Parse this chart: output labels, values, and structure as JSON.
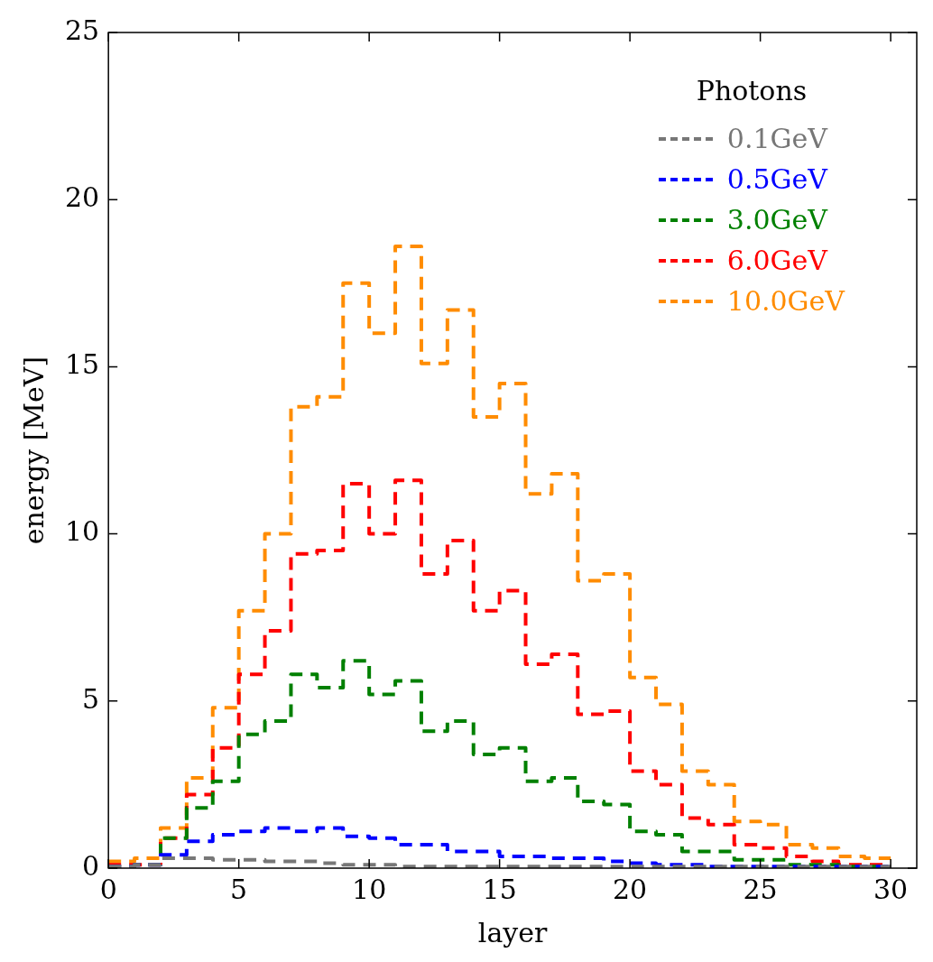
{
  "chart_data": {
    "type": "histogram",
    "xlabel": "layer",
    "ylabel": "energy [MeV]",
    "legend_title": "Photons",
    "legend": "top right",
    "line_style": "dashed",
    "grid": false,
    "bins": [
      0,
      1,
      2,
      3,
      4,
      5,
      6,
      7,
      8,
      9,
      10,
      11,
      12,
      13,
      14,
      15,
      16,
      17,
      18,
      19,
      20,
      21,
      22,
      23,
      24,
      25,
      26,
      27,
      28,
      29,
      30
    ],
    "xlim": [
      0,
      31
    ],
    "xticks": [
      0,
      5,
      10,
      15,
      20,
      25,
      30
    ],
    "ylim": [
      0,
      25
    ],
    "yticks": [
      0,
      5,
      10,
      15,
      20,
      25
    ],
    "series": [
      {
        "name": "0.1GeV",
        "color": "#777777",
        "values": [
          0.05,
          0.1,
          0.3,
          0.3,
          0.25,
          0.25,
          0.2,
          0.2,
          0.15,
          0.1,
          0.1,
          0.05,
          0.05,
          0.05,
          0.05,
          0.05,
          0.05,
          0.05,
          0.05,
          0.05,
          0.05,
          0.05,
          0.05,
          0.05,
          0.05,
          0.05,
          0.05,
          0.05,
          0.05,
          0.05
        ]
      },
      {
        "name": "0.5GeV",
        "color": "#0000ff",
        "values": [
          0.05,
          0.1,
          0.4,
          0.8,
          1.0,
          1.1,
          1.2,
          1.1,
          1.2,
          0.95,
          0.9,
          0.7,
          0.7,
          0.5,
          0.5,
          0.35,
          0.35,
          0.3,
          0.3,
          0.2,
          0.15,
          0.1,
          0.1,
          0.05,
          0.05,
          0.05,
          0.05,
          0.05,
          0.05,
          0.05
        ]
      },
      {
        "name": "3.0GeV",
        "color": "#008000",
        "values": [
          0.05,
          0.1,
          0.9,
          1.8,
          2.6,
          4.0,
          4.4,
          5.8,
          5.4,
          6.2,
          5.2,
          5.6,
          4.1,
          4.4,
          3.4,
          3.6,
          2.6,
          2.7,
          2.0,
          1.9,
          1.1,
          1.0,
          0.5,
          0.5,
          0.25,
          0.25,
          0.1,
          0.1,
          0.05,
          0.05
        ]
      },
      {
        "name": "6.0GeV",
        "color": "#ff0000",
        "values": [
          0.1,
          0.1,
          0.9,
          2.2,
          3.6,
          5.8,
          7.1,
          9.4,
          9.5,
          11.5,
          10.0,
          11.6,
          8.8,
          9.8,
          7.7,
          8.3,
          6.1,
          6.4,
          4.6,
          4.7,
          2.9,
          2.5,
          1.5,
          1.3,
          0.7,
          0.6,
          0.35,
          0.2,
          0.1,
          0.1
        ]
      },
      {
        "name": "10.0GeV",
        "color": "#ff8c00",
        "values": [
          0.2,
          0.3,
          1.2,
          2.7,
          4.8,
          7.7,
          10.0,
          13.8,
          14.1,
          17.5,
          16.0,
          18.6,
          15.1,
          16.7,
          13.5,
          14.5,
          11.2,
          11.8,
          8.6,
          8.8,
          5.7,
          4.9,
          2.9,
          2.5,
          1.4,
          1.3,
          0.7,
          0.6,
          0.35,
          0.3
        ]
      }
    ]
  }
}
